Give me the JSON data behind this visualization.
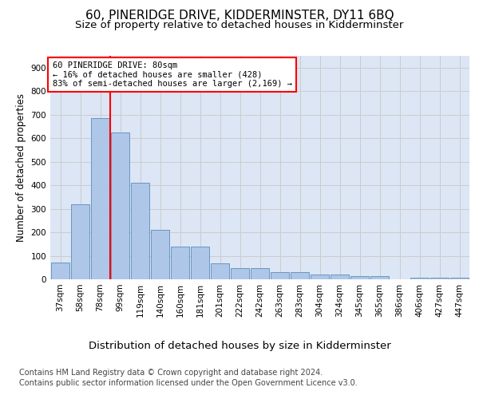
{
  "title": "60, PINERIDGE DRIVE, KIDDERMINSTER, DY11 6BQ",
  "subtitle": "Size of property relative to detached houses in Kidderminster",
  "xlabel": "Distribution of detached houses by size in Kidderminster",
  "ylabel": "Number of detached properties",
  "footer_line1": "Contains HM Land Registry data © Crown copyright and database right 2024.",
  "footer_line2": "Contains public sector information licensed under the Open Government Licence v3.0.",
  "categories": [
    "37sqm",
    "58sqm",
    "78sqm",
    "99sqm",
    "119sqm",
    "140sqm",
    "160sqm",
    "181sqm",
    "201sqm",
    "222sqm",
    "242sqm",
    "263sqm",
    "283sqm",
    "304sqm",
    "324sqm",
    "345sqm",
    "365sqm",
    "386sqm",
    "406sqm",
    "427sqm",
    "447sqm"
  ],
  "values": [
    70,
    318,
    685,
    625,
    410,
    210,
    138,
    138,
    68,
    47,
    47,
    32,
    32,
    22,
    22,
    12,
    12,
    0,
    7,
    7,
    7
  ],
  "bar_color": "#aec6e8",
  "bar_edge_color": "#5b8db8",
  "annotation_box_text_line1": "60 PINERIDGE DRIVE: 80sqm",
  "annotation_box_text_line2": "← 16% of detached houses are smaller (428)",
  "annotation_box_text_line3": "83% of semi-detached houses are larger (2,169) →",
  "annotation_box_color": "white",
  "annotation_box_edge_color": "red",
  "vline_color": "red",
  "ylim": [
    0,
    950
  ],
  "yticks": [
    0,
    100,
    200,
    300,
    400,
    500,
    600,
    700,
    800,
    900
  ],
  "grid_color": "#cccccc",
  "background_color": "#dce6f5",
  "fig_background": "white",
  "title_fontsize": 11,
  "subtitle_fontsize": 9.5,
  "xlabel_fontsize": 9.5,
  "ylabel_fontsize": 8.5,
  "tick_fontsize": 7.5,
  "footer_fontsize": 7.0
}
